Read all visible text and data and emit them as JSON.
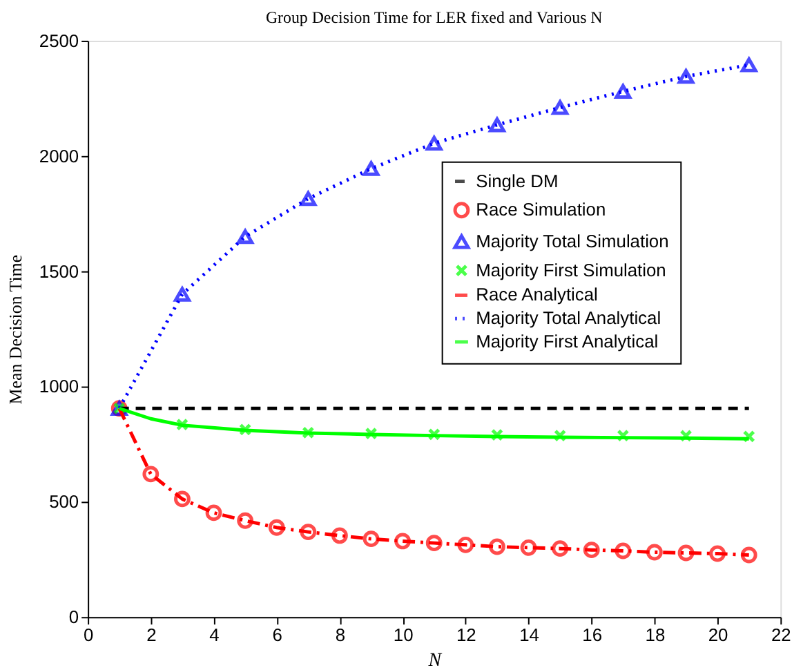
{
  "chart_data": {
    "type": "line",
    "title": "Group Decision Time for LER fixed and Various N",
    "xlabel": "N",
    "ylabel": "Mean Decision Time",
    "xlim": [
      0,
      22
    ],
    "xticks": [
      0,
      2,
      4,
      6,
      8,
      10,
      12,
      14,
      16,
      18,
      20,
      22
    ],
    "ylim": [
      0,
      2500
    ],
    "yticks": [
      0,
      500,
      1000,
      1500,
      2000,
      2500
    ],
    "grid": false,
    "legend": "right",
    "series": [
      {
        "name": "Single DM",
        "type": "line",
        "color": "#000000",
        "line_style": "dashed",
        "marker": "none",
        "x": [
          1,
          21
        ],
        "values": [
          905,
          905
        ]
      },
      {
        "name": "Race Simulation",
        "type": "scatter",
        "color": "#ff0000",
        "marker": "circle",
        "x": [
          1,
          2,
          3,
          4,
          5,
          6,
          7,
          8,
          9,
          10,
          11,
          12,
          13,
          14,
          15,
          16,
          17,
          18,
          19,
          20,
          21
        ],
        "values": [
          905,
          620,
          512,
          452,
          418,
          388,
          369,
          353,
          339,
          329,
          321,
          313,
          305,
          301,
          297,
          291,
          287,
          281,
          278,
          275,
          269
        ]
      },
      {
        "name": "Majority Total Simulation",
        "type": "scatter",
        "color": "#0000ff",
        "marker": "triangle",
        "x": [
          1,
          3,
          5,
          7,
          9,
          11,
          13,
          15,
          17,
          19,
          21
        ],
        "values": [
          905,
          1400,
          1650,
          1815,
          1945,
          2055,
          2135,
          2210,
          2280,
          2345,
          2395
        ]
      },
      {
        "name": "Majority First Simulation",
        "type": "scatter",
        "color": "#00ff00",
        "marker": "cross",
        "x": [
          1,
          3,
          5,
          7,
          9,
          11,
          13,
          15,
          17,
          19,
          21
        ],
        "values": [
          905,
          835,
          813,
          800,
          796,
          792,
          790,
          787,
          787,
          786,
          783
        ]
      },
      {
        "name": "Race Analytical",
        "type": "line",
        "color": "#ff0000",
        "line_style": "dashdot",
        "marker": "none",
        "x": [
          1,
          2,
          3,
          4,
          5,
          6,
          7,
          8,
          9,
          10,
          11,
          12,
          13,
          14,
          15,
          16,
          17,
          18,
          19,
          20,
          21
        ],
        "values": [
          905,
          620,
          512,
          452,
          418,
          388,
          369,
          353,
          339,
          329,
          321,
          313,
          305,
          301,
          297,
          291,
          287,
          281,
          278,
          275,
          269
        ]
      },
      {
        "name": "Majority Total Analytical",
        "type": "line",
        "color": "#0000ff",
        "line_style": "dotted",
        "marker": "none",
        "x": [
          1,
          3,
          5,
          7,
          9,
          11,
          13,
          15,
          17,
          19,
          21
        ],
        "values": [
          905,
          1400,
          1650,
          1815,
          1945,
          2055,
          2135,
          2210,
          2280,
          2345,
          2395
        ]
      },
      {
        "name": "Majority First Analytical",
        "type": "line",
        "color": "#00ff00",
        "line_style": "solid",
        "marker": "none",
        "x": [
          1,
          2,
          3,
          5,
          7,
          9,
          11,
          13,
          15,
          17,
          19,
          21
        ],
        "values": [
          905,
          860,
          832,
          810,
          798,
          792,
          787,
          783,
          780,
          778,
          776,
          773
        ]
      }
    ]
  }
}
